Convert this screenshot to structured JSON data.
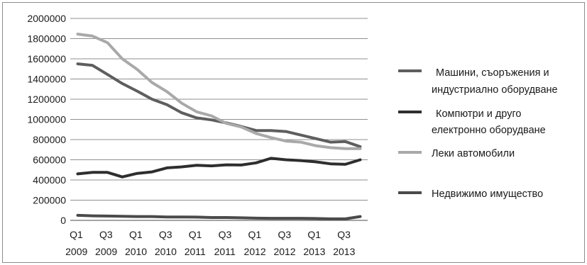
{
  "chart_data": {
    "type": "line",
    "title": "",
    "xlabel": "",
    "ylabel": "",
    "ylim": [
      0,
      2000000
    ],
    "yticks": [
      "0",
      "200000",
      "400000",
      "600000",
      "800000",
      "1000000",
      "1200000",
      "1400000",
      "1600000",
      "1800000",
      "2000000"
    ],
    "ytick_values": [
      0,
      200000,
      400000,
      600000,
      800000,
      1000000,
      1200000,
      1400000,
      1600000,
      1800000,
      2000000
    ],
    "grid": true,
    "legend_position": "right",
    "x_ticks": [
      {
        "top": "Q1",
        "bottom": "2009"
      },
      {
        "top": "Q3",
        "bottom": "2009"
      },
      {
        "top": "Q1",
        "bottom": "2010"
      },
      {
        "top": "Q3",
        "bottom": "2010"
      },
      {
        "top": "Q1",
        "bottom": "2011"
      },
      {
        "top": "Q3",
        "bottom": "2011"
      },
      {
        "top": "Q1",
        "bottom": "2012"
      },
      {
        "top": "Q3",
        "bottom": "2012"
      },
      {
        "top": "Q1",
        "bottom": "2013"
      },
      {
        "top": "Q3",
        "bottom": "2013"
      }
    ],
    "series": [
      {
        "name_lines": [
          "Машини, съоръжения и",
          "индустриално оборудване"
        ],
        "color": "#5e5e5e",
        "values": [
          1550000,
          1535000,
          1445000,
          1355000,
          1280000,
          1200000,
          1145000,
          1065000,
          1015000,
          995000,
          965000,
          930000,
          890000,
          890000,
          880000,
          845000,
          810000,
          775000,
          780000,
          730000
        ]
      },
      {
        "name_lines": [
          "Компютри и друго",
          "електронно оборудване"
        ],
        "color": "#2e2e2e",
        "values": [
          460000,
          475000,
          475000,
          430000,
          465000,
          480000,
          520000,
          530000,
          545000,
          540000,
          550000,
          548000,
          570000,
          615000,
          600000,
          592000,
          580000,
          560000,
          555000,
          600000
        ]
      },
      {
        "name_lines": [
          "Леки автомобили"
        ],
        "color": "#a9a9a9",
        "values": [
          1845000,
          1825000,
          1760000,
          1600000,
          1495000,
          1365000,
          1275000,
          1160000,
          1075000,
          1035000,
          960000,
          925000,
          860000,
          820000,
          785000,
          775000,
          740000,
          720000,
          710000,
          710000
        ]
      },
      {
        "name_lines": [
          "Недвижимо имущество"
        ],
        "color": "#4a4a4a",
        "values": [
          50000,
          45000,
          43000,
          40000,
          38000,
          38000,
          34000,
          33000,
          32000,
          28000,
          28000,
          25000,
          22000,
          20000,
          20000,
          20000,
          18000,
          15000,
          15000,
          38000
        ]
      }
    ]
  }
}
